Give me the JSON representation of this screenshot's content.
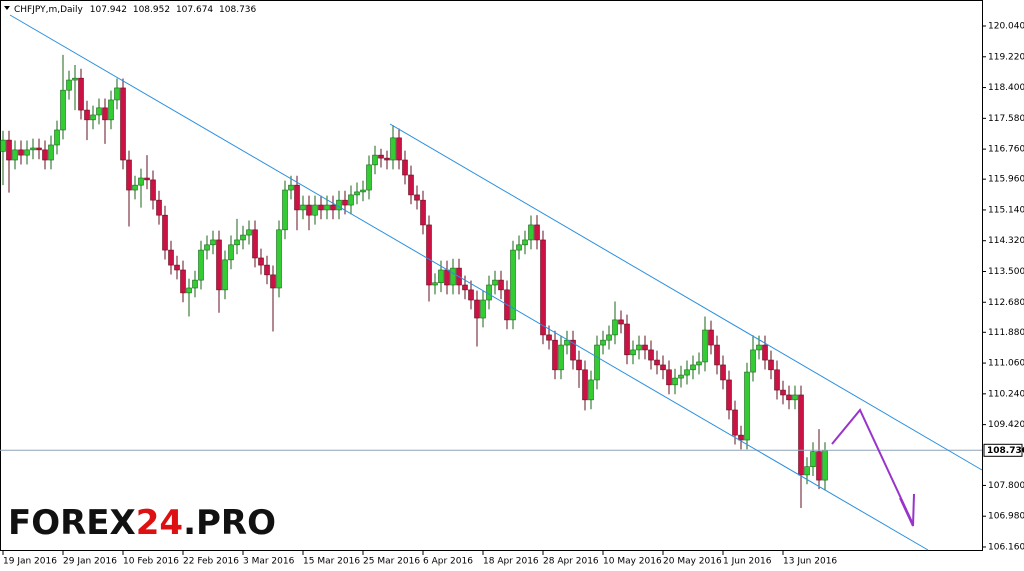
{
  "chart_data": {
    "type": "candlestick",
    "title": "CHFJPY,m,Daily",
    "watermark": [
      "FOREX",
      "24",
      ".PRO"
    ],
    "categories": [
      "19 Jan 2016",
      null,
      null,
      null,
      null,
      null,
      null,
      null,
      null,
      null,
      "29 Jan 2016",
      null,
      null,
      null,
      null,
      null,
      null,
      null,
      null,
      null,
      "10 Feb 2016",
      null,
      null,
      null,
      null,
      null,
      null,
      null,
      null,
      null,
      "22 Feb 2016",
      null,
      null,
      null,
      null,
      null,
      null,
      null,
      null,
      null,
      "3 Mar 2016",
      null,
      null,
      null,
      null,
      null,
      null,
      null,
      null,
      null,
      "15 Mar 2016",
      null,
      null,
      null,
      null,
      null,
      null,
      null,
      null,
      null,
      "25 Mar 2016",
      null,
      null,
      null,
      null,
      null,
      null,
      null,
      null,
      null,
      "6 Apr 2016",
      null,
      null,
      null,
      null,
      null,
      null,
      null,
      null,
      null,
      "18 Apr 2016",
      null,
      null,
      null,
      null,
      null,
      null,
      null,
      null,
      null,
      "28 Apr 2016",
      null,
      null,
      null,
      null,
      null,
      null,
      null,
      null,
      null,
      "10 May 2016",
      null,
      null,
      null,
      null,
      null,
      null,
      null,
      null,
      null,
      "20 May 2016",
      null,
      null,
      null,
      null,
      null,
      null,
      null,
      null,
      null,
      "1 Jun 2016",
      null,
      null,
      null,
      null,
      null,
      null,
      null,
      null,
      null,
      "13 Jun 2016",
      null,
      null,
      null,
      null,
      null,
      null,
      null
    ],
    "open": [
      116.7,
      117.0,
      116.47,
      116.74,
      116.6,
      116.74,
      116.79,
      116.74,
      116.47,
      116.87,
      117.27,
      118.33,
      118.6,
      118.65,
      117.8,
      117.54,
      117.67,
      117.86,
      117.54,
      118.07,
      118.39,
      116.47,
      115.67,
      115.8,
      115.99,
      115.94,
      115.4,
      115.0,
      114.07,
      113.67,
      113.54,
      112.93,
      113.06,
      113.27,
      114.07,
      114.21,
      114.34,
      113.01,
      113.81,
      114.21,
      114.34,
      114.47,
      114.61,
      113.86,
      113.67,
      113.41,
      113.06,
      114.61,
      115.67,
      115.8,
      115.14,
      115.27,
      115.0,
      115.27,
      115.14,
      115.27,
      115.14,
      115.4,
      115.27,
      115.54,
      115.62,
      115.67,
      116.34,
      116.6,
      116.52,
      116.47,
      117.06,
      116.47,
      116.07,
      115.54,
      115.4,
      114.74,
      113.14,
      113.2,
      113.54,
      113.14,
      113.59,
      113.14,
      113.01,
      112.74,
      112.26,
      112.74,
      113.14,
      113.27,
      113.01,
      112.21,
      114.07,
      114.21,
      114.34,
      114.74,
      114.34,
      111.81,
      111.67,
      110.88,
      111.54,
      111.67,
      111.14,
      110.88,
      110.08,
      110.61,
      111.54,
      111.67,
      111.81,
      112.21,
      112.1,
      111.28,
      111.41,
      111.54,
      111.41,
      111.14,
      111.01,
      110.88,
      110.48,
      110.66,
      110.74,
      110.88,
      111.01,
      111.09,
      111.94,
      111.54,
      111.01,
      110.61,
      109.81,
      109.14,
      109.01,
      110.82,
      111.41,
      111.54,
      111.14,
      110.88,
      110.34,
      110.21,
      110.08,
      110.21,
      108.08,
      108.3,
      108.7,
      107.942
    ],
    "high": [
      117.25,
      117.25,
      116.99,
      116.99,
      116.99,
      117.04,
      117.04,
      116.99,
      117.12,
      117.52,
      119.27,
      118.85,
      119.0,
      118.9,
      118.05,
      117.92,
      118.11,
      118.11,
      118.32,
      118.64,
      118.64,
      116.72,
      116.05,
      116.24,
      116.6,
      116.19,
      115.65,
      115.25,
      114.32,
      113.92,
      113.79,
      113.31,
      113.52,
      114.32,
      114.46,
      114.59,
      114.59,
      114.06,
      114.46,
      114.9,
      114.72,
      114.86,
      114.86,
      114.11,
      113.92,
      113.66,
      114.86,
      115.92,
      116.05,
      116.05,
      115.52,
      115.52,
      115.52,
      115.52,
      115.52,
      115.52,
      115.65,
      115.65,
      115.79,
      115.87,
      115.92,
      116.59,
      116.85,
      116.77,
      116.72,
      117.4,
      117.31,
      116.72,
      116.32,
      115.79,
      115.65,
      114.99,
      113.45,
      113.79,
      113.79,
      113.84,
      113.84,
      113.39,
      113.26,
      112.99,
      112.99,
      113.39,
      113.52,
      113.52,
      113.26,
      114.32,
      114.46,
      114.59,
      114.99,
      115.0,
      114.59,
      112.06,
      111.92,
      111.79,
      111.92,
      111.92,
      111.39,
      111.13,
      110.86,
      111.79,
      111.92,
      112.06,
      112.7,
      112.46,
      112.35,
      111.66,
      111.79,
      111.79,
      111.66,
      111.39,
      111.26,
      111.13,
      110.91,
      110.99,
      111.13,
      111.26,
      111.34,
      112.3,
      112.19,
      111.79,
      111.26,
      110.86,
      110.06,
      109.39,
      111.07,
      111.8,
      111.79,
      111.79,
      111.39,
      111.13,
      110.59,
      110.46,
      110.46,
      110.46,
      108.55,
      108.95,
      109.3,
      108.952
    ],
    "low": [
      115.8,
      115.6,
      116.22,
      116.35,
      116.35,
      116.49,
      116.49,
      116.22,
      116.22,
      116.62,
      117.02,
      118.08,
      117.8,
      117.55,
      117.0,
      117.29,
      117.42,
      116.9,
      117.29,
      117.82,
      116.22,
      114.7,
      115.42,
      115.2,
      115.69,
      115.15,
      114.75,
      113.82,
      113.42,
      113.29,
      112.68,
      112.3,
      112.81,
      113.02,
      113.82,
      113.96,
      112.4,
      112.76,
      113.56,
      113.96,
      114.09,
      114.22,
      113.61,
      113.42,
      113.16,
      111.9,
      112.81,
      114.36,
      115.42,
      114.6,
      114.89,
      114.6,
      114.75,
      114.89,
      114.89,
      114.89,
      114.89,
      115.02,
      115.02,
      115.29,
      115.37,
      115.42,
      116.09,
      116.27,
      116.22,
      116.22,
      116.22,
      115.82,
      115.29,
      115.15,
      114.49,
      112.7,
      112.89,
      112.95,
      112.89,
      112.89,
      112.89,
      112.76,
      112.49,
      111.5,
      112.01,
      112.49,
      112.89,
      112.76,
      111.96,
      111.96,
      113.82,
      113.96,
      114.09,
      114.09,
      111.56,
      111.42,
      110.63,
      110.63,
      111.29,
      110.89,
      110.4,
      109.8,
      109.83,
      110.36,
      111.29,
      111.42,
      111.56,
      111.85,
      111.03,
      111.03,
      111.16,
      111.16,
      110.89,
      110.76,
      110.63,
      110.23,
      110.23,
      110.41,
      110.49,
      110.63,
      110.76,
      110.84,
      111.29,
      110.76,
      110.36,
      109.56,
      108.89,
      108.76,
      108.76,
      110.57,
      111.16,
      110.89,
      110.63,
      110.09,
      109.96,
      109.83,
      109.83,
      107.2,
      107.83,
      108.05,
      107.7,
      107.674
    ],
    "close": [
      117.0,
      116.47,
      116.74,
      116.6,
      116.74,
      116.79,
      116.74,
      116.47,
      116.87,
      117.27,
      118.33,
      118.6,
      118.65,
      117.8,
      117.54,
      117.67,
      117.86,
      117.54,
      118.07,
      118.39,
      116.47,
      115.67,
      115.8,
      115.99,
      115.94,
      115.4,
      115.0,
      114.07,
      113.67,
      113.54,
      112.93,
      113.06,
      113.27,
      114.07,
      114.21,
      114.34,
      113.01,
      113.81,
      114.21,
      114.34,
      114.47,
      114.61,
      113.86,
      113.67,
      113.41,
      113.06,
      114.61,
      115.67,
      115.8,
      115.14,
      115.27,
      115.0,
      115.27,
      115.14,
      115.27,
      115.14,
      115.4,
      115.27,
      115.54,
      115.62,
      115.67,
      116.34,
      116.6,
      116.52,
      116.47,
      117.06,
      116.47,
      116.07,
      115.54,
      115.4,
      114.74,
      113.14,
      113.2,
      113.54,
      113.14,
      113.59,
      113.14,
      113.01,
      112.74,
      112.26,
      112.74,
      113.14,
      113.27,
      113.01,
      112.21,
      114.07,
      114.21,
      114.34,
      114.74,
      114.34,
      111.81,
      111.67,
      110.88,
      111.54,
      111.67,
      111.14,
      110.88,
      110.08,
      110.61,
      111.54,
      111.67,
      111.81,
      112.21,
      112.1,
      111.28,
      111.41,
      111.54,
      111.41,
      111.14,
      111.01,
      110.88,
      110.48,
      110.66,
      110.74,
      110.88,
      111.01,
      111.09,
      111.94,
      111.54,
      111.01,
      110.61,
      109.81,
      109.14,
      109.01,
      110.82,
      111.41,
      111.54,
      111.14,
      110.88,
      110.34,
      110.21,
      110.08,
      110.21,
      108.08,
      108.3,
      108.7,
      107.942,
      108.736
    ],
    "up_color": "#33cc33",
    "down_color": "#cc1144",
    "ylim": [
      106.053,
      120.733
    ],
    "yticks": [
      {
        "value": 120.04,
        "label": "120.040"
      },
      {
        "value": 119.22,
        "label": "119.220"
      },
      {
        "value": 118.4,
        "label": "118.400"
      },
      {
        "value": 117.58,
        "label": "117.580"
      },
      {
        "value": 116.76,
        "label": "116.760"
      },
      {
        "value": 115.96,
        "label": "115.960"
      },
      {
        "value": 115.14,
        "label": "115.140"
      },
      {
        "value": 114.32,
        "label": "114.320"
      },
      {
        "value": 113.5,
        "label": "113.500"
      },
      {
        "value": 112.68,
        "label": "112.680"
      },
      {
        "value": 111.88,
        "label": "111.880"
      },
      {
        "value": 111.06,
        "label": "111.060"
      },
      {
        "value": 110.24,
        "label": "110.240"
      },
      {
        "value": 109.42,
        "label": "109.420"
      },
      {
        "value": 107.8,
        "label": "107.800"
      },
      {
        "value": 106.98,
        "label": "106.980"
      },
      {
        "value": 106.16,
        "label": "106.160"
      }
    ],
    "grid": false
  }
}
